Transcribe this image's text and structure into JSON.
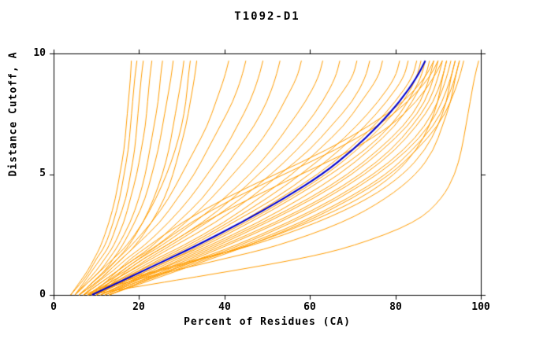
{
  "chart_data": {
    "type": "line",
    "title": "T1092-D1",
    "xlabel": "Percent of Residues (CA)",
    "ylabel": "Distance Cutoff, A",
    "xlim": [
      0,
      100
    ],
    "ylim": [
      0,
      10
    ],
    "grid": false,
    "legend": "none",
    "x_ticks": [
      0,
      20,
      40,
      60,
      80,
      100
    ],
    "y_ticks": [
      0,
      5,
      10
    ],
    "colors": {
      "model_line": "#FF9C00",
      "highlight_line": "#0000CD",
      "axis": "#000000",
      "background": "#FFFFFF"
    },
    "y_levels": [
      0,
      0.5,
      1,
      1.5,
      2,
      3,
      4,
      5,
      6,
      7,
      8,
      9,
      9.7
    ],
    "series": [
      {
        "color": "#FF9C00",
        "width": 1,
        "x": [
          4,
          6,
          8,
          9.5,
          11,
          13,
          14.5,
          15.5,
          16.5,
          17,
          17.5,
          18,
          18.2
        ]
      },
      {
        "color": "#FF9C00",
        "width": 1,
        "x": [
          4,
          6.5,
          8.5,
          10,
          12,
          14,
          15.5,
          16.5,
          17.5,
          18,
          18.5,
          19,
          19.5
        ]
      },
      {
        "color": "#FF9C00",
        "width": 1,
        "x": [
          5,
          7,
          9,
          11,
          13,
          15,
          17,
          18,
          19,
          19.5,
          20,
          20.5,
          21
        ]
      },
      {
        "color": "#FF9C00",
        "width": 1,
        "x": [
          5,
          7.5,
          10,
          12,
          14,
          16.5,
          18,
          19.5,
          20.5,
          21.5,
          22,
          22.5,
          23
        ]
      },
      {
        "color": "#FF9C00",
        "width": 1,
        "x": [
          5,
          8,
          11,
          13,
          15,
          18,
          20,
          21.5,
          22.5,
          23.5,
          24.5,
          25,
          25.5
        ]
      },
      {
        "color": "#FF9C00",
        "width": 1,
        "x": [
          6,
          9,
          12,
          14,
          16,
          19,
          21.5,
          23,
          24.5,
          25.5,
          26.5,
          27.5,
          28
        ]
      },
      {
        "color": "#FF9C00",
        "width": 1,
        "x": [
          6,
          9,
          12.5,
          15,
          17.5,
          21,
          23.5,
          25.5,
          27,
          28,
          29,
          30,
          30.5
        ]
      },
      {
        "color": "#FF9C00",
        "width": 1,
        "x": [
          5,
          8,
          11,
          14,
          17,
          21,
          24,
          26.5,
          28.5,
          30,
          31,
          31.5,
          32
        ]
      },
      {
        "color": "#FF9C00",
        "width": 1,
        "x": [
          6,
          10,
          13,
          16,
          19,
          23,
          26,
          28,
          29.5,
          31,
          32,
          33,
          33.5
        ]
      },
      {
        "color": "#FF9C00",
        "width": 1,
        "x": [
          6,
          9,
          12,
          15,
          18,
          23,
          27,
          30,
          33,
          36,
          38,
          40,
          41
        ]
      },
      {
        "color": "#FF9C00",
        "width": 1,
        "x": [
          6,
          10,
          13,
          16,
          19,
          25,
          29,
          33,
          36,
          39,
          42,
          44,
          45
        ]
      },
      {
        "color": "#FF9C00",
        "width": 1,
        "x": [
          7,
          10,
          14,
          17,
          21,
          27,
          32,
          36,
          40,
          43,
          46,
          48,
          49
        ]
      },
      {
        "color": "#FF9C00",
        "width": 1,
        "x": [
          7,
          11,
          15,
          19,
          23,
          29,
          35,
          39,
          43,
          47,
          50,
          52,
          53
        ]
      },
      {
        "color": "#FF9C00",
        "width": 1,
        "x": [
          7,
          11,
          15,
          19,
          24,
          31,
          37,
          42,
          47,
          51,
          54,
          57,
          58
        ]
      },
      {
        "color": "#FF9C00",
        "width": 1,
        "x": [
          8,
          12,
          16,
          20,
          25,
          33,
          40,
          46,
          51,
          55,
          59,
          62,
          63
        ]
      },
      {
        "color": "#FF9C00",
        "width": 1,
        "x": [
          8,
          12,
          17,
          21,
          26,
          35,
          42,
          48,
          54,
          59,
          63,
          66,
          67
        ]
      },
      {
        "color": "#FF9C00",
        "width": 1,
        "x": [
          8,
          13,
          18,
          22,
          27,
          36,
          44,
          51,
          57,
          62,
          66,
          70,
          71
        ]
      },
      {
        "color": "#FF9C00",
        "width": 1,
        "x": [
          9,
          13,
          18,
          23,
          28,
          38,
          46,
          53,
          60,
          65,
          70,
          73,
          74
        ]
      },
      {
        "color": "#FF9C00",
        "width": 1,
        "x": [
          9,
          14,
          19,
          24,
          30,
          40,
          48,
          56,
          62,
          68,
          72,
          76,
          77
        ]
      },
      {
        "color": "#FF9C00",
        "width": 1,
        "x": [
          9,
          14,
          20,
          25,
          31,
          41,
          50,
          58,
          65,
          71,
          76,
          80,
          81
        ]
      },
      {
        "color": "#FF9C00",
        "width": 1,
        "x": [
          9,
          15,
          20,
          26,
          32,
          42,
          52,
          60,
          67,
          73,
          78,
          82,
          83
        ]
      },
      {
        "color": "#FF9C00",
        "width": 1,
        "x": [
          10,
          15,
          21,
          27,
          33,
          44,
          53,
          62,
          69,
          75,
          80,
          84,
          85
        ]
      },
      {
        "color": "#FF9C00",
        "width": 1,
        "x": [
          10,
          16,
          22,
          28,
          34,
          45,
          55,
          64,
          71,
          77,
          82,
          85,
          86
        ]
      },
      {
        "color": "#FF9C00",
        "width": 1,
        "x": [
          10,
          16,
          22,
          28,
          35,
          46,
          56,
          65,
          73,
          79,
          83,
          86,
          87
        ]
      },
      {
        "color": "#FF9C00",
        "width": 1,
        "x": [
          11,
          17,
          23,
          29,
          36,
          48,
          58,
          67,
          74,
          80,
          84,
          87,
          88
        ]
      },
      {
        "color": "#FF9C00",
        "width": 1,
        "x": [
          11,
          17,
          24,
          30,
          37,
          49,
          60,
          69,
          76,
          82,
          86,
          88,
          89
        ]
      },
      {
        "color": "#FF9C00",
        "width": 1,
        "x": [
          11,
          18,
          24,
          31,
          38,
          50,
          61,
          70,
          77,
          83,
          87,
          89,
          90
        ]
      },
      {
        "color": "#FF9C00",
        "width": 1,
        "x": [
          12,
          18,
          25,
          32,
          39,
          52,
          63,
          72,
          79,
          84,
          88,
          90,
          91
        ]
      },
      {
        "color": "#FF9C00",
        "width": 1,
        "x": [
          12,
          19,
          26,
          33,
          40,
          53,
          64,
          73,
          80,
          85,
          89,
          91,
          92
        ]
      },
      {
        "color": "#FF9C00",
        "width": 1,
        "x": [
          12,
          19,
          27,
          34,
          42,
          55,
          66,
          75,
          82,
          87,
          90,
          92,
          93
        ]
      },
      {
        "color": "#FF9C00",
        "width": 1,
        "x": [
          13,
          20,
          27,
          35,
          43,
          56,
          67,
          76,
          83,
          88,
          91,
          93,
          94
        ]
      },
      {
        "color": "#FF9C00",
        "width": 1,
        "x": [
          13,
          20,
          28,
          36,
          44,
          58,
          69,
          78,
          84,
          89,
          92,
          94,
          95
        ]
      },
      {
        "color": "#FF9C00",
        "width": 1,
        "x": [
          13,
          21,
          29,
          37,
          45,
          59,
          70,
          79,
          85,
          90,
          93,
          95,
          96
        ]
      },
      {
        "color": "#FF9C00",
        "width": 1,
        "x": [
          8,
          15,
          25,
          35,
          45,
          60,
          72,
          80,
          85,
          88,
          90,
          91,
          92
        ]
      },
      {
        "color": "#FF9C00",
        "width": 1,
        "x": [
          7,
          14,
          24,
          34,
          46,
          62,
          74,
          82,
          87,
          90,
          92,
          93,
          94
        ]
      },
      {
        "color": "#FF9C00",
        "width": 1,
        "x": [
          8,
          16,
          28,
          40,
          52,
          68,
          78,
          85,
          89,
          91,
          93,
          94,
          95
        ]
      },
      {
        "color": "#FF9C00",
        "width": 1,
        "x": [
          10,
          13,
          16,
          20,
          24,
          32,
          42,
          54,
          66,
          76,
          83,
          88,
          90
        ]
      },
      {
        "color": "#FF9C00",
        "width": 1,
        "x": [
          9,
          12,
          15,
          18,
          22,
          30,
          40,
          52,
          64,
          74,
          82,
          87,
          89
        ]
      },
      {
        "color": "#FF9C00",
        "width": 1,
        "x": [
          10,
          14,
          17,
          21,
          26,
          35,
          46,
          58,
          70,
          79,
          85,
          89,
          91
        ]
      },
      {
        "color": "#FF9C00",
        "width": 1,
        "x": [
          8,
          25,
          42,
          58,
          70,
          85,
          91,
          94,
          95.5,
          96.5,
          97.5,
          98.5,
          99.5
        ]
      },
      {
        "color": "#0000CD",
        "width": 2,
        "x": [
          9,
          15,
          21,
          27,
          33,
          44,
          54,
          63,
          70,
          76,
          81,
          85,
          87
        ]
      }
    ]
  }
}
